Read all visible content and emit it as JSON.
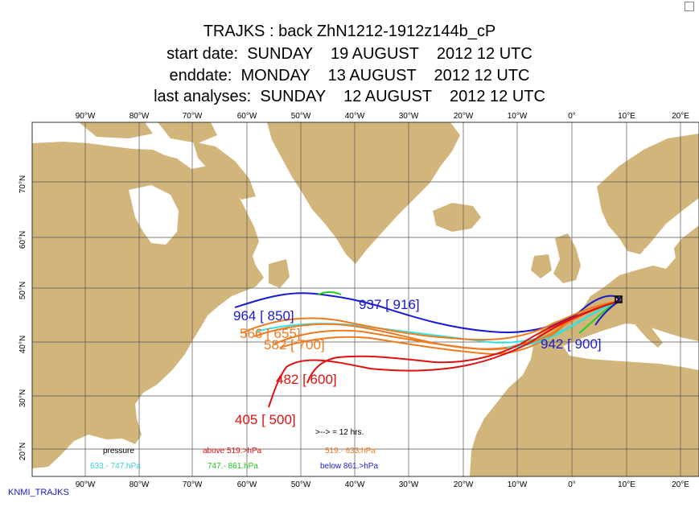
{
  "titles": {
    "line1": "TRAJKS : back ZhN1212-1912z144b_cP",
    "line2": "start date:  SUNDAY    19 AUGUST    2012 12 UTC",
    "line3": "enddate:  MONDAY    13 AUGUST    2012 12 UTC",
    "line4": "last analyses:  SUNDAY    12 AUGUST    2012 12 UTC"
  },
  "lon_labels": [
    "90°W",
    "80°W",
    "70°W",
    "60°W",
    "50°W",
    "40°W",
    "30°W",
    "20°W",
    "10°W",
    "0°",
    "10°E",
    "20°E"
  ],
  "lat_labels": [
    "70°N",
    "60°N",
    "50°N",
    "40°N",
    "30°N",
    "20°N"
  ],
  "legend": {
    "arrow_note": ">--> = 12 hrs.",
    "pressure": "pressure",
    "above": "above  519.>hPa",
    "band1": "519.-      633.hPa",
    "band2": "633.-     747.hPa",
    "band3": "747.-    861.hPa",
    "below": "below   861.>hPa"
  },
  "labels": {
    "l937": "937 [ 916]",
    "l964": "964 [ 850]",
    "l566": "566 [ 655]",
    "l582": "582 [ 700]",
    "l942": "942 [ 900]",
    "l482": "482 [ 600]",
    "l405": "405 [ 500]"
  },
  "colors": {
    "land": "#d2b57a",
    "sea": "#ffffff",
    "grid": "#555555",
    "above": "#e01010",
    "band1": "#f07b1e",
    "band2": "#36e0e0",
    "band3": "#20d020",
    "below": "#1a1ad0"
  },
  "footer": "KNMI_TRAJKS"
}
